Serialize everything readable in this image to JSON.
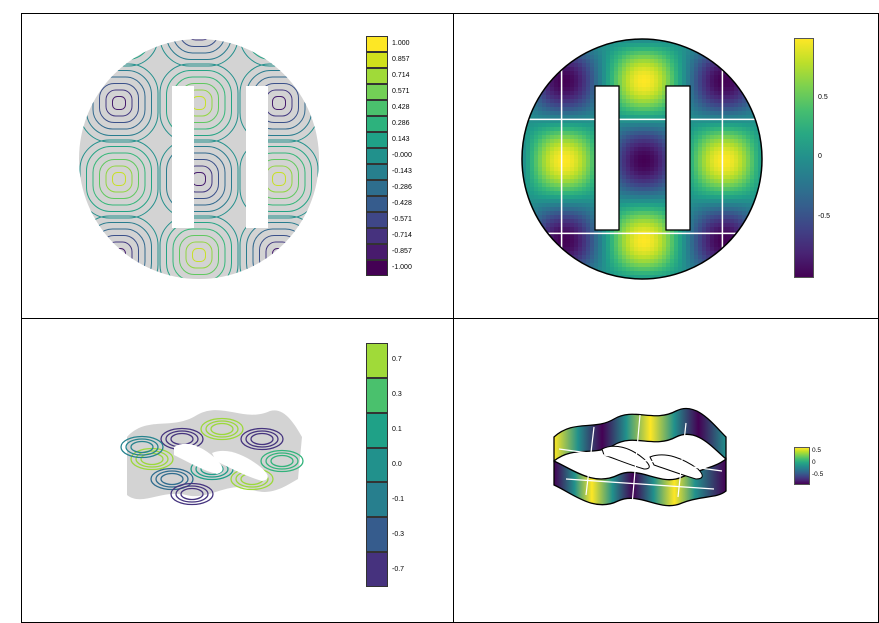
{
  "panels": [
    {
      "name": "contour-2d",
      "legend_type": "discrete",
      "legend_labels": [
        "1.000",
        "0.857",
        "0.714",
        "0.571",
        "0.428",
        "0.286",
        "0.143",
        "-0.000",
        "-0.143",
        "-0.286",
        "-0.428",
        "-0.571",
        "-0.714",
        "-0.857",
        "-1.000"
      ],
      "legend_colors": [
        "#fde725",
        "#d0e11c",
        "#a0da39",
        "#73d056",
        "#4ac16d",
        "#2db27d",
        "#1fa187",
        "#21918c",
        "#277f8e",
        "#2e6e8e",
        "#365c8d",
        "#3f4788",
        "#46327e",
        "#481b6d",
        "#440154"
      ]
    },
    {
      "name": "heatmap-2d",
      "legend_type": "continuous",
      "legend_labels": [
        "0.5",
        "0",
        "-0.5"
      ]
    },
    {
      "name": "contour-3d",
      "legend_type": "discrete",
      "legend_labels": [
        "0.7",
        "0.3",
        "0.1",
        "0.0",
        "-0.1",
        "-0.3",
        "-0.7"
      ],
      "legend_colors": [
        "#a0da39",
        "#4ac16d",
        "#1fa187",
        "#21918c",
        "#277f8e",
        "#365c8d",
        "#46327e"
      ]
    },
    {
      "name": "surface-3d",
      "legend_type": "continuous",
      "legend_labels": [
        "0.5",
        "0",
        "-0.5"
      ]
    }
  ],
  "chart_data": [
    {
      "type": "heatmap",
      "title": "",
      "description": "contour lines of f = cos(x)cos(y)-type field on disk with two rectangular holes",
      "levels": [
        -1.0,
        -0.857,
        -0.714,
        -0.571,
        -0.428,
        -0.286,
        -0.143,
        0.0,
        0.143,
        0.286,
        0.428,
        0.571,
        0.714,
        0.857,
        1.0
      ],
      "colorscale": "viridis"
    },
    {
      "type": "heatmap",
      "title": "",
      "colorbar_ticks": [
        0.5,
        0,
        -0.5
      ],
      "zlim": [
        -1,
        1
      ],
      "colorscale": "viridis"
    },
    {
      "type": "heatmap",
      "title": "",
      "levels": [
        0.7,
        0.3,
        0.1,
        0.0,
        -0.1,
        -0.3,
        -0.7
      ],
      "colorscale": "viridis"
    },
    {
      "type": "heatmap",
      "title": "",
      "colorbar_ticks": [
        0.5,
        0,
        -0.5
      ],
      "colorscale": "viridis"
    }
  ]
}
